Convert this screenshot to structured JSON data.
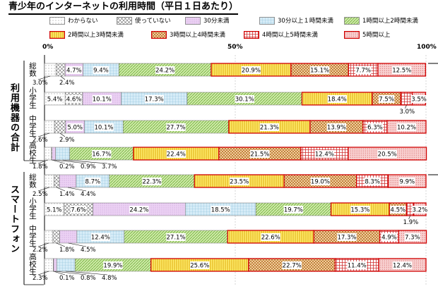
{
  "title": "青少年のインターネットの利用時間（平日１日あたり）",
  "chart_data": {
    "type": "bar",
    "orientation": "horizontal-stacked-100",
    "xlim": [
      0,
      100
    ],
    "x_ticks": [
      "0%",
      "50%",
      "100%"
    ],
    "legend_position": "top",
    "categories_legend": [
      {
        "name": "わからない",
        "color": "#ffffff",
        "pattern": "dots"
      },
      {
        "name": "使っていない",
        "color": "#ffffff",
        "pattern": "crosshatch"
      },
      {
        "name": "30分未満",
        "color": "#e8c8f0",
        "pattern": "fine-dots"
      },
      {
        "name": "30分以上１時間未満",
        "color": "#cfe8f4",
        "pattern": "grid"
      },
      {
        "name": "1時間以上2時間未満",
        "color": "#c5e59a",
        "pattern": "diagonal"
      },
      {
        "name": "2時間以上3時間未満",
        "color": "#ffe24a",
        "pattern": "vertical"
      },
      {
        "name": "3時間以上4時間未満",
        "color": "#e8bd88",
        "pattern": "checker"
      },
      {
        "name": "4時間以上5時間未満",
        "color": "#ffffff",
        "pattern": "red-grid"
      },
      {
        "name": "5時間以上",
        "color": "#f8c8c8",
        "pattern": "red-dots"
      }
    ],
    "groups": [
      {
        "name": "利用機器の合計",
        "rows": [
          {
            "label": "総数",
            "values": [
              3.0,
              2.4,
              4.7,
              9.4,
              24.2,
              20.9,
              15.1,
              7.7,
              12.5
            ]
          },
          {
            "label": "小学生",
            "values": [
              5.4,
              4.6,
              10.1,
              17.3,
              30.1,
              18.4,
              7.5,
              3.0,
              3.5
            ]
          },
          {
            "label": "中学生",
            "values": [
              2.6,
              2.9,
              5.0,
              10.1,
              27.7,
              21.3,
              13.9,
              6.3,
              10.2
            ]
          },
          {
            "label": "高校生",
            "values": [
              1.8,
              0.2,
              0.9,
              3.7,
              16.7,
              22.4,
              21.5,
              12.4,
              20.5
            ]
          }
        ]
      },
      {
        "name": "スマートフォン",
        "rows": [
          {
            "label": "総数",
            "values": [
              2.5,
              1.4,
              4.4,
              8.7,
              22.3,
              23.5,
              19.0,
              8.3,
              9.9
            ]
          },
          {
            "label": "小学生",
            "values": [
              5.1,
              7.6,
              24.2,
              18.5,
              19.7,
              15.3,
              4.5,
              1.9,
              3.2
            ]
          },
          {
            "label": "中学生",
            "values": [
              2.2,
              1.8,
              4.5,
              12.4,
              27.1,
              22.6,
              17.3,
              4.9,
              7.3
            ]
          },
          {
            "label": "高校生",
            "values": [
              2.3,
              0.1,
              0.8,
              4.8,
              19.9,
              25.6,
              22.7,
              11.4,
              12.4
            ]
          }
        ]
      }
    ],
    "labels": [
      {
        "group": 0,
        "row": 0,
        "seg": 0,
        "text": "3.0%",
        "place": "below"
      },
      {
        "group": 0,
        "row": 0,
        "seg": 1,
        "text": "2.4%",
        "place": "below"
      },
      {
        "group": 0,
        "row": 0,
        "seg": 2,
        "text": "4.7%",
        "place": "in"
      },
      {
        "group": 0,
        "row": 0,
        "seg": 3,
        "text": "9.4%",
        "place": "in"
      },
      {
        "group": 0,
        "row": 0,
        "seg": 4,
        "text": "24.2%",
        "place": "in"
      },
      {
        "group": 0,
        "row": 0,
        "seg": 5,
        "text": "20.9%",
        "place": "in"
      },
      {
        "group": 0,
        "row": 0,
        "seg": 6,
        "text": "15.1%",
        "place": "in"
      },
      {
        "group": 0,
        "row": 0,
        "seg": 7,
        "text": "7.7%",
        "place": "in"
      },
      {
        "group": 0,
        "row": 0,
        "seg": 8,
        "text": "12.5%",
        "place": "in"
      },
      {
        "group": 0,
        "row": 1,
        "seg": 0,
        "text": "5.4%",
        "place": "in"
      },
      {
        "group": 0,
        "row": 1,
        "seg": 1,
        "text": "4.6%",
        "place": "in"
      },
      {
        "group": 0,
        "row": 1,
        "seg": 2,
        "text": "10.1%",
        "place": "in"
      },
      {
        "group": 0,
        "row": 1,
        "seg": 3,
        "text": "17.3%",
        "place": "in"
      },
      {
        "group": 0,
        "row": 1,
        "seg": 4,
        "text": "30.1%",
        "place": "in"
      },
      {
        "group": 0,
        "row": 1,
        "seg": 5,
        "text": "18.4%",
        "place": "in"
      },
      {
        "group": 0,
        "row": 1,
        "seg": 6,
        "text": "7.5%",
        "place": "in"
      },
      {
        "group": 0,
        "row": 1,
        "seg": 7,
        "text": "3.0%",
        "place": "below"
      },
      {
        "group": 0,
        "row": 1,
        "seg": 8,
        "text": "3.5%",
        "place": "in"
      },
      {
        "group": 0,
        "row": 2,
        "seg": 0,
        "text": "2.6%",
        "place": "below"
      },
      {
        "group": 0,
        "row": 2,
        "seg": 1,
        "text": "2.9%",
        "place": "below"
      },
      {
        "group": 0,
        "row": 2,
        "seg": 2,
        "text": "5.0%",
        "place": "in"
      },
      {
        "group": 0,
        "row": 2,
        "seg": 3,
        "text": "10.1%",
        "place": "in"
      },
      {
        "group": 0,
        "row": 2,
        "seg": 4,
        "text": "27.7%",
        "place": "in"
      },
      {
        "group": 0,
        "row": 2,
        "seg": 5,
        "text": "21.3%",
        "place": "in"
      },
      {
        "group": 0,
        "row": 2,
        "seg": 6,
        "text": "13.9%",
        "place": "in"
      },
      {
        "group": 0,
        "row": 2,
        "seg": 7,
        "text": "6.3%",
        "place": "in"
      },
      {
        "group": 0,
        "row": 2,
        "seg": 8,
        "text": "10.2%",
        "place": "in"
      },
      {
        "group": 0,
        "row": 3,
        "seg": 0,
        "text": "1.8%",
        "place": "below"
      },
      {
        "group": 0,
        "row": 3,
        "seg": 1,
        "text": "0.2%",
        "place": "below"
      },
      {
        "group": 0,
        "row": 3,
        "seg": 2,
        "text": "0.9%",
        "place": "below"
      },
      {
        "group": 0,
        "row": 3,
        "seg": 3,
        "text": "3.7%",
        "place": "below"
      },
      {
        "group": 0,
        "row": 3,
        "seg": 4,
        "text": "16.7%",
        "place": "in"
      },
      {
        "group": 0,
        "row": 3,
        "seg": 5,
        "text": "22.4%",
        "place": "in"
      },
      {
        "group": 0,
        "row": 3,
        "seg": 6,
        "text": "21.5%",
        "place": "in"
      },
      {
        "group": 0,
        "row": 3,
        "seg": 7,
        "text": "12.4%",
        "place": "in"
      },
      {
        "group": 0,
        "row": 3,
        "seg": 8,
        "text": "20.5%",
        "place": "in"
      },
      {
        "group": 1,
        "row": 0,
        "seg": 0,
        "text": "2.5%",
        "place": "below"
      },
      {
        "group": 1,
        "row": 0,
        "seg": 1,
        "text": "1.4%",
        "place": "below"
      },
      {
        "group": 1,
        "row": 0,
        "seg": 2,
        "text": "4.4%",
        "place": "below"
      },
      {
        "group": 1,
        "row": 0,
        "seg": 3,
        "text": "8.7%",
        "place": "in"
      },
      {
        "group": 1,
        "row": 0,
        "seg": 4,
        "text": "22.3%",
        "place": "in"
      },
      {
        "group": 1,
        "row": 0,
        "seg": 5,
        "text": "23.5%",
        "place": "in"
      },
      {
        "group": 1,
        "row": 0,
        "seg": 6,
        "text": "19.0%",
        "place": "in"
      },
      {
        "group": 1,
        "row": 0,
        "seg": 7,
        "text": "8.3%",
        "place": "in"
      },
      {
        "group": 1,
        "row": 0,
        "seg": 8,
        "text": "9.9%",
        "place": "in"
      },
      {
        "group": 1,
        "row": 1,
        "seg": 0,
        "text": "5.1%",
        "place": "in"
      },
      {
        "group": 1,
        "row": 1,
        "seg": 1,
        "text": "7.6%",
        "place": "in"
      },
      {
        "group": 1,
        "row": 1,
        "seg": 2,
        "text": "24.2%",
        "place": "in"
      },
      {
        "group": 1,
        "row": 1,
        "seg": 3,
        "text": "18.5%",
        "place": "in"
      },
      {
        "group": 1,
        "row": 1,
        "seg": 4,
        "text": "19.7%",
        "place": "in"
      },
      {
        "group": 1,
        "row": 1,
        "seg": 5,
        "text": "15.3%",
        "place": "in"
      },
      {
        "group": 1,
        "row": 1,
        "seg": 6,
        "text": "4.5%",
        "place": "in"
      },
      {
        "group": 1,
        "row": 1,
        "seg": 7,
        "text": "1.9%",
        "place": "below"
      },
      {
        "group": 1,
        "row": 1,
        "seg": 8,
        "text": "3.2%",
        "place": "in"
      },
      {
        "group": 1,
        "row": 2,
        "seg": 0,
        "text": "2.2%",
        "place": "below"
      },
      {
        "group": 1,
        "row": 2,
        "seg": 1,
        "text": "1.8%",
        "place": "below"
      },
      {
        "group": 1,
        "row": 2,
        "seg": 2,
        "text": "4.5%",
        "place": "below"
      },
      {
        "group": 1,
        "row": 2,
        "seg": 3,
        "text": "12.4%",
        "place": "in"
      },
      {
        "group": 1,
        "row": 2,
        "seg": 4,
        "text": "27.1%",
        "place": "in"
      },
      {
        "group": 1,
        "row": 2,
        "seg": 5,
        "text": "22.6%",
        "place": "in"
      },
      {
        "group": 1,
        "row": 2,
        "seg": 6,
        "text": "17.3%",
        "place": "in"
      },
      {
        "group": 1,
        "row": 2,
        "seg": 7,
        "text": "4.9%",
        "place": "in"
      },
      {
        "group": 1,
        "row": 2,
        "seg": 8,
        "text": "7.3%",
        "place": "in"
      },
      {
        "group": 1,
        "row": 3,
        "seg": 0,
        "text": "2.3%",
        "place": "below"
      },
      {
        "group": 1,
        "row": 3,
        "seg": 1,
        "text": "0.1%",
        "place": "below"
      },
      {
        "group": 1,
        "row": 3,
        "seg": 2,
        "text": "0.8%",
        "place": "below"
      },
      {
        "group": 1,
        "row": 3,
        "seg": 3,
        "text": "4.8%",
        "place": "below"
      },
      {
        "group": 1,
        "row": 3,
        "seg": 4,
        "text": "19.9%",
        "place": "in"
      },
      {
        "group": 1,
        "row": 3,
        "seg": 5,
        "text": "25.6%",
        "place": "in"
      },
      {
        "group": 1,
        "row": 3,
        "seg": 6,
        "text": "22.7%",
        "place": "in"
      },
      {
        "group": 1,
        "row": 3,
        "seg": 7,
        "text": "11.4%",
        "place": "in"
      },
      {
        "group": 1,
        "row": 3,
        "seg": 8,
        "text": "12.4%",
        "place": "in"
      }
    ]
  }
}
